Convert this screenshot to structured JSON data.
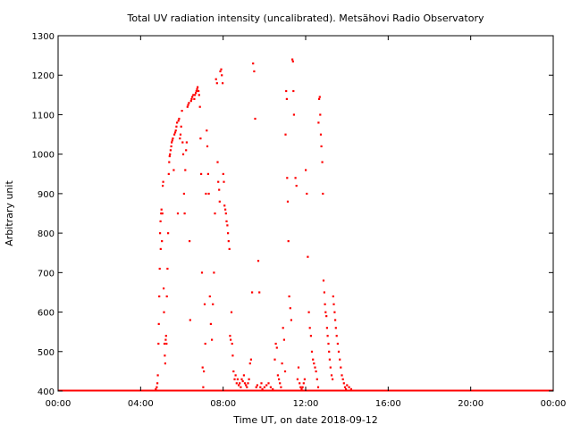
{
  "chart_data": {
    "type": "scatter",
    "title": "Total UV radiation intensity (uncalibrated). Metsähovi Radio Observatory",
    "xlabel": "Time UT, on date 2018-09-12",
    "ylabel": "Arbitrary unit",
    "xlim": [
      0,
      24
    ],
    "ylim": [
      400,
      1300
    ],
    "x_unit": "hours UT",
    "x_ticks": [
      {
        "value": 0,
        "label": "00:00"
      },
      {
        "value": 4,
        "label": "04:00"
      },
      {
        "value": 8,
        "label": "08:00"
      },
      {
        "value": 12,
        "label": "12:00"
      },
      {
        "value": 16,
        "label": "16:00"
      },
      {
        "value": 20,
        "label": "20:00"
      },
      {
        "value": 24,
        "label": "00:00"
      }
    ],
    "y_ticks": [
      {
        "value": 400,
        "label": "400"
      },
      {
        "value": 500,
        "label": "500"
      },
      {
        "value": 600,
        "label": "600"
      },
      {
        "value": 700,
        "label": "700"
      },
      {
        "value": 800,
        "label": "800"
      },
      {
        "value": 900,
        "label": "900"
      },
      {
        "value": 1000,
        "label": "1000"
      },
      {
        "value": 1100,
        "label": "1100"
      },
      {
        "value": 1200,
        "label": "1200"
      },
      {
        "value": 1300,
        "label": "1300"
      }
    ],
    "grid": false,
    "legend": "none",
    "marker_color": "#ff0000",
    "baseline": {
      "y": 400,
      "x_start": 0,
      "x_end": 24,
      "note": "continuous floor of points at the axis minimum"
    },
    "series": [
      {
        "points": [
          [
            4.73,
            405
          ],
          [
            4.78,
            410
          ],
          [
            4.81,
            420
          ],
          [
            4.83,
            440
          ],
          [
            4.86,
            520
          ],
          [
            4.88,
            570
          ],
          [
            4.9,
            640
          ],
          [
            4.92,
            710
          ],
          [
            4.94,
            800
          ],
          [
            4.96,
            830
          ],
          [
            4.97,
            760
          ],
          [
            4.99,
            850
          ],
          [
            5.01,
            860
          ],
          [
            5.03,
            780
          ],
          [
            5.05,
            850
          ],
          [
            5.07,
            920
          ],
          [
            5.09,
            930
          ],
          [
            5.11,
            660
          ],
          [
            5.13,
            600
          ],
          [
            5.15,
            520
          ],
          [
            5.17,
            490
          ],
          [
            5.19,
            470
          ],
          [
            5.21,
            530
          ],
          [
            5.23,
            540
          ],
          [
            5.25,
            520
          ],
          [
            5.27,
            640
          ],
          [
            5.3,
            710
          ],
          [
            5.33,
            800
          ],
          [
            5.36,
            950
          ],
          [
            5.38,
            980
          ],
          [
            5.4,
            995
          ],
          [
            5.42,
            1000
          ],
          [
            5.45,
            1010
          ],
          [
            5.48,
            1020
          ],
          [
            5.5,
            1030
          ],
          [
            5.53,
            1035
          ],
          [
            5.56,
            1040
          ],
          [
            5.6,
            960
          ],
          [
            5.63,
            1050
          ],
          [
            5.67,
            1055
          ],
          [
            5.7,
            1060
          ],
          [
            5.73,
            1070
          ],
          [
            5.76,
            1080
          ],
          [
            5.8,
            850
          ],
          [
            5.83,
            1085
          ],
          [
            5.86,
            1090
          ],
          [
            5.9,
            1040
          ],
          [
            5.93,
            1050
          ],
          [
            5.96,
            1070
          ],
          [
            6.0,
            1110
          ],
          [
            6.03,
            1030
          ],
          [
            6.06,
            1000
          ],
          [
            6.1,
            900
          ],
          [
            6.13,
            850
          ],
          [
            6.16,
            960
          ],
          [
            6.2,
            1010
          ],
          [
            6.23,
            1030
          ],
          [
            6.27,
            1120
          ],
          [
            6.3,
            1125
          ],
          [
            6.34,
            1130
          ],
          [
            6.37,
            780
          ],
          [
            6.4,
            580
          ],
          [
            6.44,
            1135
          ],
          [
            6.47,
            1140
          ],
          [
            6.5,
            1145
          ],
          [
            6.55,
            1150
          ],
          [
            6.6,
            1140
          ],
          [
            6.63,
            1150
          ],
          [
            6.67,
            1155
          ],
          [
            6.7,
            1160
          ],
          [
            6.73,
            1165
          ],
          [
            6.76,
            1170
          ],
          [
            6.8,
            1160
          ],
          [
            6.83,
            1150
          ],
          [
            6.87,
            1120
          ],
          [
            6.9,
            1040
          ],
          [
            6.93,
            950
          ],
          [
            6.97,
            700
          ],
          [
            7.0,
            460
          ],
          [
            7.03,
            410
          ],
          [
            7.06,
            450
          ],
          [
            7.1,
            620
          ],
          [
            7.13,
            520
          ],
          [
            7.16,
            900
          ],
          [
            7.2,
            1060
          ],
          [
            7.23,
            1020
          ],
          [
            7.27,
            950
          ],
          [
            7.3,
            900
          ],
          [
            7.35,
            640
          ],
          [
            7.4,
            570
          ],
          [
            7.45,
            530
          ],
          [
            7.5,
            620
          ],
          [
            7.55,
            700
          ],
          [
            7.6,
            850
          ],
          [
            7.65,
            1190
          ],
          [
            7.7,
            1180
          ],
          [
            7.73,
            980
          ],
          [
            7.76,
            930
          ],
          [
            7.8,
            910
          ],
          [
            7.83,
            880
          ],
          [
            7.86,
            1210
          ],
          [
            7.9,
            1215
          ],
          [
            7.93,
            1200
          ],
          [
            7.97,
            1180
          ],
          [
            8.0,
            950
          ],
          [
            8.03,
            930
          ],
          [
            8.06,
            870
          ],
          [
            8.1,
            860
          ],
          [
            8.13,
            850
          ],
          [
            8.16,
            830
          ],
          [
            8.2,
            820
          ],
          [
            8.23,
            800
          ],
          [
            8.26,
            780
          ],
          [
            8.3,
            760
          ],
          [
            8.33,
            540
          ],
          [
            8.36,
            530
          ],
          [
            8.4,
            600
          ],
          [
            8.43,
            520
          ],
          [
            8.46,
            490
          ],
          [
            8.5,
            450
          ],
          [
            8.55,
            430
          ],
          [
            8.6,
            440
          ],
          [
            8.65,
            420
          ],
          [
            8.7,
            430
          ],
          [
            8.75,
            415
          ],
          [
            8.8,
            420
          ],
          [
            8.85,
            410
          ],
          [
            8.9,
            430
          ],
          [
            8.95,
            425
          ],
          [
            9.0,
            440
          ],
          [
            9.05,
            420
          ],
          [
            9.1,
            415
          ],
          [
            9.15,
            410
          ],
          [
            9.2,
            420
          ],
          [
            9.25,
            430
          ],
          [
            9.3,
            470
          ],
          [
            9.35,
            480
          ],
          [
            9.4,
            650
          ],
          [
            9.45,
            1230
          ],
          [
            9.5,
            1210
          ],
          [
            9.55,
            1090
          ],
          [
            9.6,
            410
          ],
          [
            9.65,
            415
          ],
          [
            9.7,
            730
          ],
          [
            9.75,
            650
          ],
          [
            9.8,
            410
          ],
          [
            9.85,
            420
          ],
          [
            9.9,
            405
          ],
          [
            10.0,
            410
          ],
          [
            10.1,
            415
          ],
          [
            10.2,
            420
          ],
          [
            10.3,
            410
          ],
          [
            10.4,
            405
          ],
          [
            10.5,
            480
          ],
          [
            10.55,
            520
          ],
          [
            10.6,
            510
          ],
          [
            10.65,
            440
          ],
          [
            10.7,
            430
          ],
          [
            10.75,
            420
          ],
          [
            10.8,
            410
          ],
          [
            10.85,
            470
          ],
          [
            10.9,
            560
          ],
          [
            10.95,
            530
          ],
          [
            11.0,
            450
          ],
          [
            11.02,
            1050
          ],
          [
            11.05,
            1160
          ],
          [
            11.08,
            1140
          ],
          [
            11.1,
            940
          ],
          [
            11.13,
            880
          ],
          [
            11.16,
            780
          ],
          [
            11.2,
            640
          ],
          [
            11.25,
            610
          ],
          [
            11.3,
            580
          ],
          [
            11.35,
            1240
          ],
          [
            11.38,
            1235
          ],
          [
            11.4,
            1160
          ],
          [
            11.43,
            1100
          ],
          [
            11.5,
            940
          ],
          [
            11.55,
            920
          ],
          [
            11.6,
            430
          ],
          [
            11.65,
            460
          ],
          [
            11.7,
            420
          ],
          [
            11.75,
            410
          ],
          [
            11.8,
            405
          ],
          [
            11.85,
            410
          ],
          [
            11.9,
            420
          ],
          [
            11.95,
            430
          ],
          [
            12.0,
            960
          ],
          [
            12.05,
            900
          ],
          [
            12.1,
            740
          ],
          [
            12.15,
            600
          ],
          [
            12.2,
            560
          ],
          [
            12.25,
            540
          ],
          [
            12.3,
            500
          ],
          [
            12.35,
            480
          ],
          [
            12.4,
            470
          ],
          [
            12.45,
            460
          ],
          [
            12.5,
            450
          ],
          [
            12.55,
            430
          ],
          [
            12.6,
            410
          ],
          [
            12.62,
            1080
          ],
          [
            12.65,
            1140
          ],
          [
            12.68,
            1145
          ],
          [
            12.7,
            1100
          ],
          [
            12.73,
            1050
          ],
          [
            12.76,
            1020
          ],
          [
            12.8,
            980
          ],
          [
            12.83,
            900
          ],
          [
            12.86,
            680
          ],
          [
            12.9,
            650
          ],
          [
            12.93,
            620
          ],
          [
            12.96,
            600
          ],
          [
            13.0,
            590
          ],
          [
            13.03,
            560
          ],
          [
            13.06,
            540
          ],
          [
            13.1,
            520
          ],
          [
            13.13,
            500
          ],
          [
            13.16,
            480
          ],
          [
            13.2,
            460
          ],
          [
            13.25,
            440
          ],
          [
            13.3,
            430
          ],
          [
            13.33,
            640
          ],
          [
            13.36,
            620
          ],
          [
            13.4,
            600
          ],
          [
            13.43,
            580
          ],
          [
            13.46,
            560
          ],
          [
            13.5,
            540
          ],
          [
            13.55,
            520
          ],
          [
            13.6,
            500
          ],
          [
            13.65,
            480
          ],
          [
            13.7,
            460
          ],
          [
            13.75,
            440
          ],
          [
            13.8,
            430
          ],
          [
            13.85,
            420
          ],
          [
            13.9,
            410
          ],
          [
            13.95,
            405
          ],
          [
            14.0,
            415
          ],
          [
            14.1,
            410
          ],
          [
            14.2,
            405
          ]
        ]
      }
    ]
  }
}
